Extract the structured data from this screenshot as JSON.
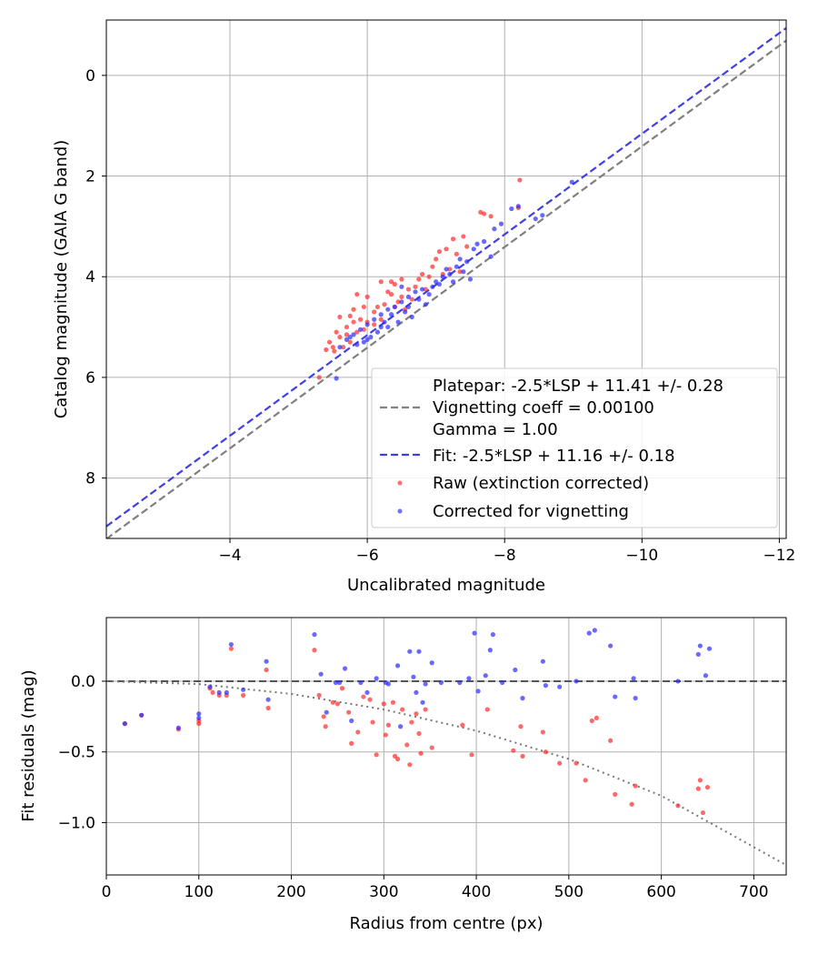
{
  "chart_data": [
    {
      "type": "scatter",
      "xlabel": "Uncalibrated magnitude",
      "ylabel": "Catalog magnitude (GAIA G band)",
      "xlim": [
        -2.2,
        -12.1
      ],
      "ylim": [
        9.2,
        -1.1
      ],
      "xticks": [
        -4,
        -6,
        -8,
        -10,
        -12
      ],
      "yticks": [
        0,
        2,
        4,
        6,
        8
      ],
      "xtick_labels": [
        "−4",
        "−6",
        "−8",
        "−10",
        "−12"
      ],
      "ytick_labels": [
        "0",
        "2",
        "4",
        "6",
        "8"
      ],
      "grid": true,
      "legend_position": "lower-right",
      "legend": [
        {
          "kind": "dashed-line",
          "color": "#7f7f7f",
          "lines": [
            "Platepar: -2.5*LSP + 11.41 +/- 0.28",
            "Vignetting coeff = 0.00100",
            "Gamma = 1.00"
          ]
        },
        {
          "kind": "dashed-line",
          "color": "#3f3fe8",
          "lines": [
            "Fit: -2.5*LSP + 11.16 +/- 0.18"
          ]
        },
        {
          "kind": "point",
          "color": "#ff3b3b",
          "lines": [
            "Raw (extinction corrected)"
          ]
        },
        {
          "kind": "point",
          "color": "#3b3bff",
          "lines": [
            "Corrected for vignetting"
          ]
        }
      ],
      "lines": [
        {
          "name": "Platepar",
          "slope": 1,
          "intercept": 11.41,
          "color": "#7f7f7f"
        },
        {
          "name": "Fit",
          "slope": 1,
          "intercept": 11.16,
          "color": "#3f3fe8"
        }
      ],
      "series": [
        {
          "name": "Raw (extinction corrected)",
          "color": "#ff2a2a",
          "points": [
            [
              -8.22,
              2.08
            ],
            [
              -8.2,
              2.63
            ],
            [
              -7.8,
              2.8
            ],
            [
              -7.7,
              2.75
            ],
            [
              -7.65,
              2.72
            ],
            [
              -7.4,
              3.2
            ],
            [
              -7.25,
              3.25
            ],
            [
              -7.15,
              3.45
            ],
            [
              -7.05,
              3.5
            ],
            [
              -7.3,
              3.55
            ],
            [
              -7.0,
              3.65
            ],
            [
              -6.95,
              3.8
            ],
            [
              -7.2,
              3.85
            ],
            [
              -7.35,
              3.9
            ],
            [
              -6.8,
              3.95
            ],
            [
              -6.9,
              4.0
            ],
            [
              -6.75,
              4.05
            ],
            [
              -6.5,
              4.05
            ],
            [
              -6.35,
              4.1
            ],
            [
              -6.2,
              4.1
            ],
            [
              -6.4,
              4.15
            ],
            [
              -6.7,
              4.2
            ],
            [
              -6.6,
              4.25
            ],
            [
              -6.3,
              4.3
            ],
            [
              -6.5,
              4.4
            ],
            [
              -6.0,
              4.4
            ],
            [
              -5.85,
              4.35
            ],
            [
              -6.25,
              4.55
            ],
            [
              -6.4,
              4.6
            ],
            [
              -6.15,
              4.6
            ],
            [
              -5.95,
              4.6
            ],
            [
              -6.55,
              4.65
            ],
            [
              -6.1,
              4.7
            ],
            [
              -5.75,
              4.78
            ],
            [
              -5.9,
              4.85
            ],
            [
              -6.0,
              4.9
            ],
            [
              -5.8,
              4.9
            ],
            [
              -6.1,
              4.95
            ],
            [
              -5.7,
              5.0
            ],
            [
              -5.95,
              5.05
            ],
            [
              -5.85,
              5.1
            ],
            [
              -5.55,
              5.1
            ],
            [
              -5.7,
              5.15
            ],
            [
              -5.6,
              5.2
            ],
            [
              -5.45,
              5.3
            ],
            [
              -5.5,
              5.4
            ],
            [
              -5.4,
              5.45
            ],
            [
              -5.65,
              5.4
            ],
            [
              -5.75,
              5.3
            ],
            [
              -5.52,
              5.48
            ],
            [
              -6.35,
              4.35
            ],
            [
              -6.45,
              4.5
            ],
            [
              -6.65,
              4.45
            ],
            [
              -6.85,
              4.25
            ],
            [
              -7.1,
              3.95
            ],
            [
              -7.45,
              3.4
            ],
            [
              -6.2,
              4.85
            ],
            [
              -5.6,
              4.8
            ],
            [
              -5.3,
              6.0
            ],
            [
              -5.8,
              4.65
            ]
          ]
        },
        {
          "name": "Corrected for vignetting",
          "color": "#2a2aff",
          "points": [
            [
              -8.98,
              2.12
            ],
            [
              -8.55,
              2.78
            ],
            [
              -8.45,
              2.85
            ],
            [
              -8.2,
              2.6
            ],
            [
              -8.1,
              2.65
            ],
            [
              -7.85,
              3.05
            ],
            [
              -7.95,
              2.95
            ],
            [
              -7.7,
              3.3
            ],
            [
              -7.6,
              3.35
            ],
            [
              -7.55,
              3.45
            ],
            [
              -7.8,
              3.6
            ],
            [
              -7.45,
              3.7
            ],
            [
              -7.3,
              3.8
            ],
            [
              -7.4,
              3.9
            ],
            [
              -7.2,
              3.95
            ],
            [
              -7.1,
              4.0
            ],
            [
              -7.5,
              4.05
            ],
            [
              -7.25,
              4.1
            ],
            [
              -7.05,
              4.15
            ],
            [
              -6.95,
              4.2
            ],
            [
              -6.8,
              4.25
            ],
            [
              -6.7,
              4.3
            ],
            [
              -6.6,
              4.4
            ],
            [
              -6.75,
              4.45
            ],
            [
              -6.5,
              4.5
            ],
            [
              -6.85,
              4.55
            ],
            [
              -6.4,
              4.6
            ],
            [
              -6.3,
              4.65
            ],
            [
              -6.55,
              4.7
            ],
            [
              -6.2,
              4.75
            ],
            [
              -6.65,
              4.8
            ],
            [
              -6.1,
              4.85
            ],
            [
              -6.45,
              4.9
            ],
            [
              -6.0,
              4.95
            ],
            [
              -6.3,
              5.0
            ],
            [
              -5.9,
              5.05
            ],
            [
              -6.15,
              5.1
            ],
            [
              -5.8,
              5.15
            ],
            [
              -6.05,
              5.2
            ],
            [
              -5.7,
              5.25
            ],
            [
              -5.95,
              5.3
            ],
            [
              -5.85,
              5.35
            ],
            [
              -5.6,
              5.4
            ],
            [
              -6.2,
              5.0
            ],
            [
              -5.55,
              6.02
            ],
            [
              -7.35,
              3.65
            ],
            [
              -6.9,
              4.35
            ],
            [
              -6.5,
              4.2
            ],
            [
              -6.0,
              5.25
            ],
            [
              -6.35,
              4.75
            ],
            [
              -7.0,
              4.1
            ],
            [
              -5.75,
              5.2
            ],
            [
              -6.6,
              4.6
            ],
            [
              -6.25,
              4.9
            ],
            [
              -7.15,
              3.85
            ]
          ]
        }
      ]
    },
    {
      "type": "scatter",
      "xlabel": "Radius from centre (px)",
      "ylabel": "Fit residuals (mag)",
      "xlim": [
        0,
        735
      ],
      "ylim": [
        -1.37,
        0.45
      ],
      "xticks": [
        0,
        100,
        200,
        300,
        400,
        500,
        600,
        700
      ],
      "yticks": [
        0.0,
        -0.5,
        -1.0
      ],
      "xtick_labels": [
        "0",
        "100",
        "200",
        "300",
        "400",
        "500",
        "600",
        "700"
      ],
      "ytick_labels": [
        "0.0",
        "−0.5",
        "−1.0"
      ],
      "grid": true,
      "reference_lines": [
        {
          "name": "zero",
          "style": "dashed",
          "color": "#555555",
          "y": 0
        },
        {
          "name": "vignetting model",
          "style": "dotted",
          "color": "#777777",
          "x": [
            0,
            100,
            200,
            300,
            400,
            500,
            600,
            735
          ],
          "y": [
            0,
            -0.02,
            -0.09,
            -0.2,
            -0.35,
            -0.55,
            -0.81,
            -1.3
          ]
        }
      ],
      "series": [
        {
          "name": "Raw (extinction corrected)",
          "color": "#ff2a2a",
          "points": [
            [
              20,
              -0.3
            ],
            [
              38,
              -0.24
            ],
            [
              78,
              -0.34
            ],
            [
              100,
              -0.28
            ],
            [
              100,
              -0.3
            ],
            [
              112,
              -0.05
            ],
            [
              115,
              -0.08
            ],
            [
              122,
              -0.1
            ],
            [
              130,
              -0.1
            ],
            [
              135,
              0.23
            ],
            [
              148,
              -0.1
            ],
            [
              173,
              0.08
            ],
            [
              175,
              -0.19
            ],
            [
              225,
              0.22
            ],
            [
              230,
              -0.1
            ],
            [
              235,
              -0.25
            ],
            [
              237,
              -0.32
            ],
            [
              245,
              -0.15
            ],
            [
              250,
              -0.16
            ],
            [
              255,
              -0.05
            ],
            [
              262,
              -0.22
            ],
            [
              265,
              -0.44
            ],
            [
              272,
              -0.36
            ],
            [
              278,
              -0.11
            ],
            [
              285,
              -0.13
            ],
            [
              288,
              -0.29
            ],
            [
              292,
              -0.52
            ],
            [
              300,
              -0.16
            ],
            [
              302,
              -0.38
            ],
            [
              305,
              -0.31
            ],
            [
              310,
              -0.15
            ],
            [
              312,
              -0.53
            ],
            [
              315,
              -0.55
            ],
            [
              320,
              -0.2
            ],
            [
              325,
              -0.45
            ],
            [
              328,
              -0.59
            ],
            [
              330,
              -0.29
            ],
            [
              335,
              -0.23
            ],
            [
              338,
              -0.37
            ],
            [
              340,
              -0.51
            ],
            [
              345,
              -0.2
            ],
            [
              352,
              -0.47
            ],
            [
              385,
              -0.31
            ],
            [
              395,
              -0.52
            ],
            [
              412,
              -0.2
            ],
            [
              440,
              -0.49
            ],
            [
              448,
              -0.32
            ],
            [
              450,
              -0.53
            ],
            [
              472,
              -0.36
            ],
            [
              475,
              -0.5
            ],
            [
              490,
              -0.58
            ],
            [
              508,
              -0.58
            ],
            [
              518,
              -0.7
            ],
            [
              525,
              -0.28
            ],
            [
              530,
              -0.26
            ],
            [
              545,
              -0.42
            ],
            [
              550,
              -0.8
            ],
            [
              568,
              -0.87
            ],
            [
              572,
              -0.74
            ],
            [
              618,
              -0.88
            ],
            [
              640,
              -0.76
            ],
            [
              642,
              -0.7
            ],
            [
              645,
              -0.93
            ],
            [
              650,
              -0.75
            ]
          ]
        },
        {
          "name": "Corrected for vignetting",
          "color": "#2a2aff",
          "points": [
            [
              20,
              -0.3
            ],
            [
              38,
              -0.24
            ],
            [
              78,
              -0.33
            ],
            [
              100,
              -0.23
            ],
            [
              100,
              -0.26
            ],
            [
              112,
              -0.04
            ],
            [
              122,
              -0.08
            ],
            [
              130,
              -0.08
            ],
            [
              135,
              0.26
            ],
            [
              148,
              -0.06
            ],
            [
              173,
              0.14
            ],
            [
              175,
              -0.13
            ],
            [
              225,
              0.33
            ],
            [
              232,
              0.05
            ],
            [
              238,
              -0.22
            ],
            [
              248,
              -0.01
            ],
            [
              252,
              -0.01
            ],
            [
              258,
              0.09
            ],
            [
              265,
              -0.28
            ],
            [
              275,
              -0.01
            ],
            [
              282,
              -0.08
            ],
            [
              292,
              0.02
            ],
            [
              302,
              -0.01
            ],
            [
              305,
              -0.02
            ],
            [
              315,
              0.11
            ],
            [
              318,
              -0.32
            ],
            [
              328,
              0.21
            ],
            [
              332,
              0.03
            ],
            [
              335,
              -0.08
            ],
            [
              338,
              0.21
            ],
            [
              342,
              -0.15
            ],
            [
              345,
              -0.02
            ],
            [
              352,
              0.13
            ],
            [
              362,
              -0.01
            ],
            [
              382,
              -0.01
            ],
            [
              392,
              0.02
            ],
            [
              398,
              0.34
            ],
            [
              402,
              -0.07
            ],
            [
              410,
              0.04
            ],
            [
              415,
              0.22
            ],
            [
              418,
              0.33
            ],
            [
              428,
              -0.01
            ],
            [
              442,
              0.08
            ],
            [
              450,
              -0.12
            ],
            [
              472,
              0.14
            ],
            [
              475,
              -0.03
            ],
            [
              490,
              -0.04
            ],
            [
              508,
              0.0
            ],
            [
              522,
              0.34
            ],
            [
              528,
              0.36
            ],
            [
              545,
              0.25
            ],
            [
              550,
              -0.11
            ],
            [
              570,
              0.02
            ],
            [
              572,
              -0.12
            ],
            [
              618,
              0.0
            ],
            [
              640,
              0.19
            ],
            [
              642,
              0.25
            ],
            [
              648,
              0.04
            ],
            [
              652,
              0.23
            ]
          ]
        }
      ]
    }
  ]
}
